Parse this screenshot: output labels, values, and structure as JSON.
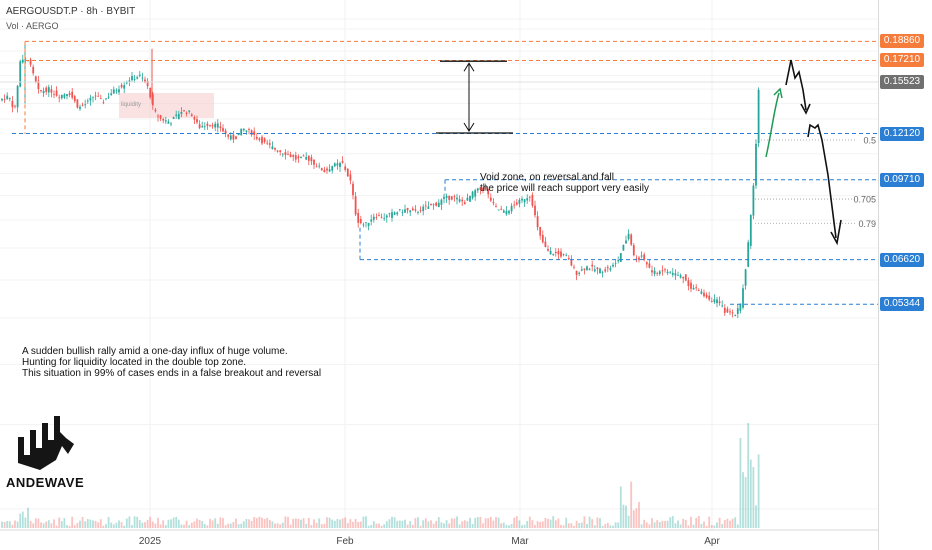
{
  "header": {
    "symbol_line": "AERGOUSDT.P · 8h · BYBIT",
    "volume_line": "Vol · AERGO"
  },
  "chart_data": {
    "type": "candlestick",
    "title": "AERGOUSDT.P · 8h · BYBIT",
    "ylim": [
      0.0185,
      0.2155
    ],
    "y_scale": "log",
    "y_ticks": [
      "0.21000",
      "0.20000",
      "0.18000",
      "0.17000",
      "0.16000",
      "0.15000",
      "0.14000",
      "0.13000",
      "0.11000",
      "0.10000",
      "0.09000",
      "0.08000",
      "0.07000",
      "0.06000",
      "0.05000",
      "0.04000",
      "0.03000",
      "0.02000"
    ],
    "x_ticks": [
      "2025",
      "Feb",
      "Mar",
      "Apr"
    ],
    "grid": true,
    "volume_label": "Vol · AERGO",
    "path_points": [
      [
        0,
        0.142
      ],
      [
        10,
        0.145
      ],
      [
        16,
        0.135
      ],
      [
        22,
        0.175
      ],
      [
        30,
        0.172
      ],
      [
        40,
        0.148
      ],
      [
        50,
        0.15
      ],
      [
        60,
        0.145
      ],
      [
        70,
        0.148
      ],
      [
        80,
        0.137
      ],
      [
        88,
        0.14
      ],
      [
        96,
        0.146
      ],
      [
        104,
        0.141
      ],
      [
        112,
        0.147
      ],
      [
        122,
        0.152
      ],
      [
        132,
        0.158
      ],
      [
        142,
        0.16
      ],
      [
        150,
        0.15
      ],
      [
        155,
        0.135
      ],
      [
        162,
        0.13
      ],
      [
        172,
        0.128
      ],
      [
        182,
        0.135
      ],
      [
        192,
        0.134
      ],
      [
        200,
        0.125
      ],
      [
        210,
        0.127
      ],
      [
        220,
        0.126
      ],
      [
        228,
        0.12
      ],
      [
        236,
        0.118
      ],
      [
        244,
        0.124
      ],
      [
        252,
        0.122
      ],
      [
        260,
        0.118
      ],
      [
        268,
        0.115
      ],
      [
        278,
        0.112
      ],
      [
        288,
        0.11
      ],
      [
        298,
        0.107
      ],
      [
        308,
        0.108
      ],
      [
        318,
        0.104
      ],
      [
        326,
        0.101
      ],
      [
        334,
        0.104
      ],
      [
        344,
        0.105
      ],
      [
        352,
        0.096
      ],
      [
        358,
        0.08
      ],
      [
        366,
        0.078
      ],
      [
        376,
        0.082
      ],
      [
        386,
        0.081
      ],
      [
        396,
        0.083
      ],
      [
        406,
        0.084
      ],
      [
        416,
        0.083
      ],
      [
        426,
        0.085
      ],
      [
        436,
        0.086
      ],
      [
        446,
        0.089
      ],
      [
        456,
        0.089
      ],
      [
        466,
        0.087
      ],
      [
        476,
        0.092
      ],
      [
        486,
        0.093
      ],
      [
        496,
        0.085
      ],
      [
        506,
        0.083
      ],
      [
        516,
        0.086
      ],
      [
        526,
        0.089
      ],
      [
        532,
        0.09
      ],
      [
        540,
        0.075
      ],
      [
        548,
        0.069
      ],
      [
        558,
        0.068
      ],
      [
        568,
        0.067
      ],
      [
        578,
        0.062
      ],
      [
        588,
        0.064
      ],
      [
        598,
        0.063
      ],
      [
        608,
        0.063
      ],
      [
        618,
        0.065
      ],
      [
        624,
        0.07
      ],
      [
        630,
        0.075
      ],
      [
        636,
        0.066
      ],
      [
        644,
        0.067
      ],
      [
        654,
        0.062
      ],
      [
        664,
        0.063
      ],
      [
        674,
        0.062
      ],
      [
        684,
        0.061
      ],
      [
        692,
        0.058
      ],
      [
        700,
        0.057
      ],
      [
        710,
        0.055
      ],
      [
        720,
        0.054
      ],
      [
        728,
        0.051
      ],
      [
        736,
        0.051
      ],
      [
        742,
        0.0534
      ],
      [
        748,
        0.066
      ],
      [
        752,
        0.081
      ],
      [
        755,
        0.097
      ],
      [
        758,
        0.123
      ],
      [
        760,
        0.152
      ]
    ],
    "levels": [
      {
        "value": "0.18860",
        "color": "#f57c3a",
        "style": "dashed"
      },
      {
        "value": "0.17210",
        "color": "#f57c3a",
        "style": "dashed"
      },
      {
        "value": "0.12120",
        "color": "#2a7fd4",
        "style": "dashed"
      },
      {
        "value": "0.09710",
        "color": "#2a7fd4",
        "style": "dashed"
      },
      {
        "value": "0.06620",
        "color": "#2a7fd4",
        "style": "dashed"
      },
      {
        "value": "0.05344",
        "color": "#2a7fd4",
        "style": "dashed"
      }
    ],
    "last_price": {
      "value": "0.15523",
      "color": "#707070"
    },
    "fib_labels": [
      "0.5",
      "0.705",
      "0.79"
    ],
    "annotations": {
      "liquidity": "liquidity",
      "void_zone": "Void zone, on reversal and fall\nthe price will reach support very easily",
      "note": "A sudden bullish rally amid a one-day influx of huge volume.\nHunting for liquidity located in the double top zone.\nThis situation in 99% of cases ends in a false breakout and reversal"
    },
    "colors": {
      "up": "#26a69a",
      "down": "#ef5350",
      "text": "#131722",
      "axis_text": "#555555"
    }
  },
  "logo": {
    "word": "ANDEWAVE"
  }
}
